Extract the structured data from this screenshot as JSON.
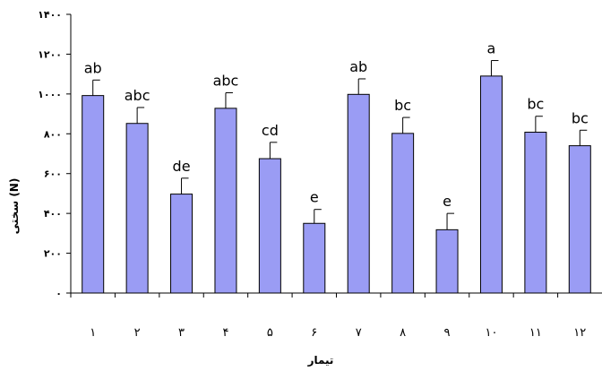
{
  "chart_data": {
    "type": "bar",
    "title": "",
    "xlabel": "تیمار",
    "ylabel": "سختی (N)",
    "ylim": [
      0,
      1400
    ],
    "yticks": [
      0,
      200,
      400,
      600,
      800,
      1000,
      1200,
      1400
    ],
    "ytick_labels": [
      "٠",
      "٢٠٠",
      "۴٠٠",
      "۶٠٠",
      "٨٠٠",
      "١٠٠٠",
      "١٢٠٠",
      "١۴٠٠"
    ],
    "categories": [
      "١",
      "٢",
      "٣",
      "۴",
      "۵",
      "۶",
      "٧",
      "٨",
      "٩",
      "١٠",
      "١١",
      "١٢"
    ],
    "values": [
      992,
      852,
      497,
      928,
      675,
      350,
      998,
      802,
      318,
      1090,
      808,
      740
    ],
    "errors": [
      78,
      80,
      80,
      78,
      82,
      70,
      78,
      80,
      82,
      78,
      80,
      78
    ],
    "labels": [
      "ab",
      "abc",
      "de",
      "abc",
      "cd",
      "e",
      "ab",
      "bc",
      "e",
      "a",
      "bc",
      "bc"
    ],
    "bar_color": "#9a9cf4",
    "grid": false
  }
}
